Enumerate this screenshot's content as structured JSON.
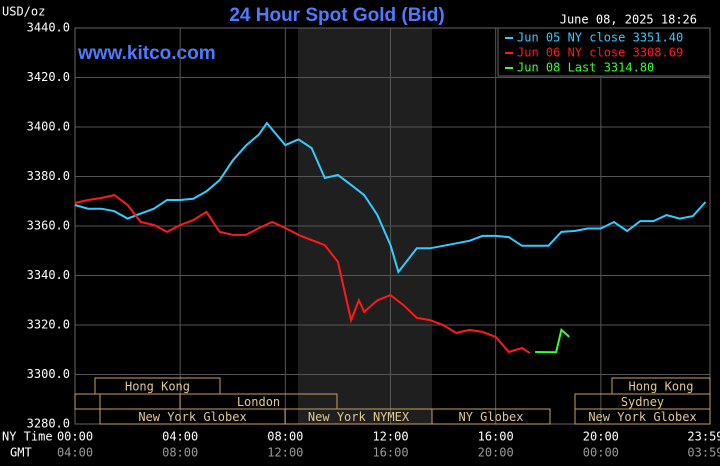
{
  "chart_data": {
    "type": "line",
    "title": "24 Hour Spot Gold (Bid)",
    "y_unit_label": "USD/oz",
    "timestamp": "June 08, 2025 18:26",
    "watermark": "www.kitco.com",
    "x_axis_label": "NY Time",
    "x2_axis_label": "GMT",
    "xlim": [
      0,
      24
    ],
    "xticks": [
      {
        "value": 0,
        "label": "00:00"
      },
      {
        "value": 4,
        "label": "04:00"
      },
      {
        "value": 8,
        "label": "08:00"
      },
      {
        "value": 12,
        "label": "12:00"
      },
      {
        "value": 16,
        "label": "16:00"
      },
      {
        "value": 20,
        "label": "20:00"
      },
      {
        "value": 23.98,
        "label": "23:59"
      }
    ],
    "x2tick_labels": [
      "04:00",
      "08:00",
      "12:00",
      "16:00",
      "20:00",
      "00:00",
      "03:59"
    ],
    "ylim": [
      3280,
      3440
    ],
    "yticks": [
      {
        "value": 3280,
        "label": "3280.0"
      },
      {
        "value": 3300,
        "label": "3300.0"
      },
      {
        "value": 3320,
        "label": "3320.0"
      },
      {
        "value": 3340,
        "label": "3340.0"
      },
      {
        "value": 3360,
        "label": "3360.0"
      },
      {
        "value": 3380,
        "label": "3380.0"
      },
      {
        "value": 3400,
        "label": "3400.0"
      },
      {
        "value": 3420,
        "label": "3420.0"
      },
      {
        "value": 3440,
        "label": "3440.0"
      }
    ],
    "grid": true,
    "sessions": [
      "Hong Kong",
      "London",
      "New York Globex",
      "New York NYMEX",
      "NY Globex",
      "Hong Kong",
      "Sydney",
      "New York Globex"
    ],
    "series": [
      {
        "name": "Jun 05 NY close 3351.40",
        "color": "#33ccff",
        "x": [
          0,
          0.5,
          1,
          1.5,
          2,
          2.5,
          3,
          3.5,
          4,
          4.5,
          5,
          5.5,
          6,
          6.5,
          7,
          7.3,
          7.5,
          8,
          8.5,
          9,
          9.5,
          10,
          10.5,
          11,
          11.5,
          12,
          12.3,
          13,
          13.5,
          14,
          14.5,
          15,
          15.5,
          16,
          16.5,
          17,
          17.5,
          18,
          18.5,
          19,
          19.5,
          20,
          20.5,
          21,
          21.5,
          22,
          22.5,
          23,
          23.5,
          23.98
        ],
        "values": [
          3368.5,
          3367,
          3367,
          3366,
          3363,
          3365,
          3367,
          3370.5,
          3370.5,
          3371,
          3374,
          3378.5,
          3386.5,
          3392.5,
          3397,
          3401.6,
          3399,
          3392.7,
          3395,
          3391.5,
          3379.4,
          3380.6,
          3376.6,
          3372.5,
          3364.4,
          3352.3,
          3341.4,
          3351,
          3351,
          3352,
          3353,
          3354,
          3356,
          3356,
          3355.5,
          3352,
          3352,
          3352,
          3357.6,
          3358,
          3359,
          3359,
          3361.6,
          3358,
          3362,
          3362,
          3364.4,
          3363,
          3364,
          3369.7
        ]
      },
      {
        "name": "Jun 06 NY close 3308.69",
        "color": "#ff1a1a",
        "x": [
          0,
          0.5,
          1,
          1.5,
          2,
          2.5,
          3,
          3.5,
          4,
          4.5,
          5,
          5.5,
          6,
          6.5,
          7,
          7.5,
          8,
          8.5,
          9,
          9.5,
          10,
          10.5,
          10.8,
          11,
          11.5,
          12,
          12.5,
          13,
          13.5,
          14,
          14.5,
          15,
          15.5,
          16,
          16.5,
          17,
          17.3
        ],
        "values": [
          3369.3,
          3370.5,
          3371.3,
          3372.5,
          3368.5,
          3361.6,
          3360.4,
          3357.6,
          3360.4,
          3362.4,
          3365.7,
          3357.6,
          3356.4,
          3356.4,
          3359.2,
          3361.6,
          3359.2,
          3356.4,
          3354.3,
          3352.3,
          3345.5,
          3322,
          3330,
          3325.3,
          3330,
          3332.1,
          3328,
          3322.9,
          3322,
          3320,
          3316.8,
          3318,
          3317.2,
          3315.2,
          3309.1,
          3310.7,
          3308.7
        ]
      },
      {
        "name": "Jun 08 Last 3314.80",
        "color": "#33ff33",
        "x": [
          17.5,
          18.3,
          18.5,
          18.8
        ],
        "values": [
          3309.1,
          3309,
          3318,
          3315.2
        ]
      }
    ]
  }
}
